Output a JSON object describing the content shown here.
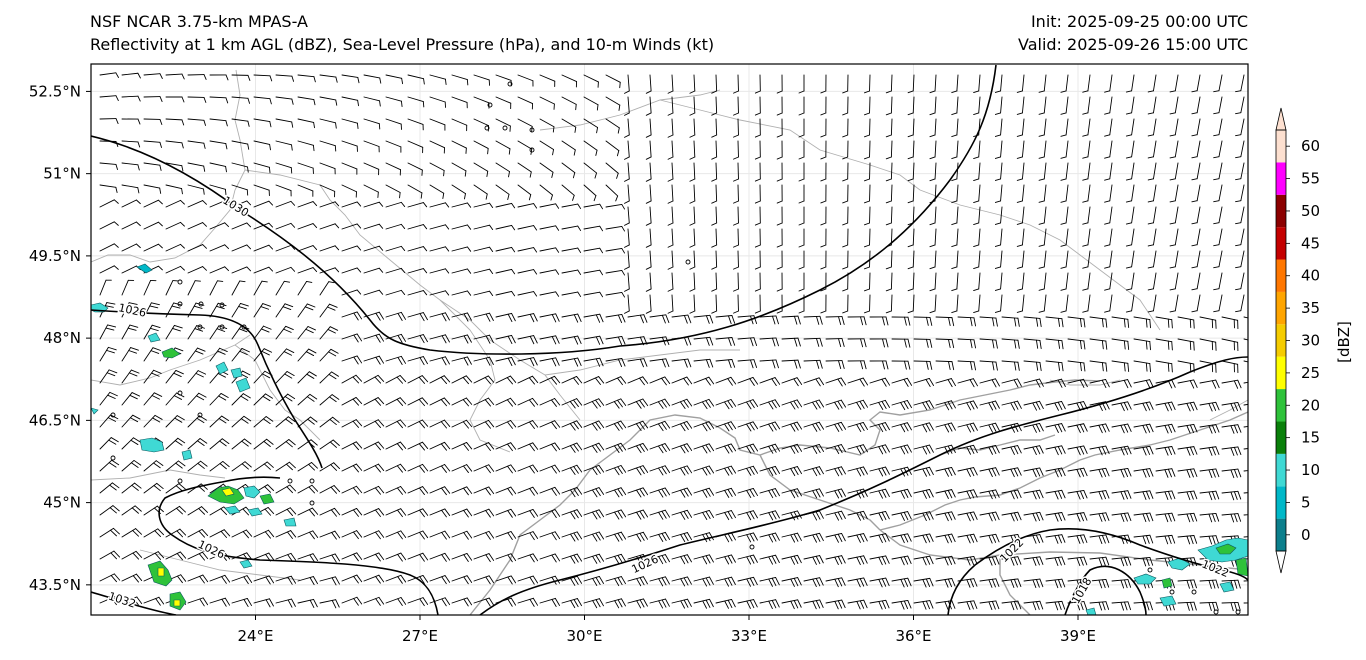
{
  "title": {
    "left_line1": "NSF NCAR 3.75-km MPAS-A",
    "left_line2": "Reflectivity at 1 km AGL (dBZ), Sea-Level Pressure (hPa), and 10-m Winds (kt)",
    "right_line1": "Init: 2025-09-25 00:00 UTC",
    "right_line2": "Valid: 2025-09-26 15:00 UTC"
  },
  "map": {
    "lat_labels": [
      "52.5°N",
      "51°N",
      "49.5°N",
      "48°N",
      "46.5°N",
      "45°N",
      "43.5°N"
    ],
    "lon_labels": [
      "24°E",
      "27°E",
      "30°E",
      "33°E",
      "36°E",
      "39°E"
    ],
    "lat_values": [
      52.5,
      51,
      49.5,
      48,
      46.5,
      45,
      43.5
    ],
    "lon_values": [
      24,
      27,
      30,
      33,
      36,
      39
    ],
    "lon_range": [
      21,
      42.1
    ],
    "lat_range": [
      42.95,
      53.0
    ]
  },
  "isobars": {
    "labels": [
      "1030",
      "1026",
      "1026",
      "1026",
      "1022",
      "1022",
      "1018",
      "1032"
    ]
  },
  "colorbar": {
    "unit_label": "[dBZ]",
    "tick_labels": [
      "0",
      "5",
      "10",
      "15",
      "20",
      "25",
      "30",
      "35",
      "40",
      "45",
      "50",
      "55",
      "60"
    ],
    "bins": [
      {
        "from": 0,
        "to": 5,
        "color": "#0c7f8c"
      },
      {
        "from": 5,
        "to": 10,
        "color": "#00b8c8"
      },
      {
        "from": 10,
        "to": 15,
        "color": "#3fd9d4"
      },
      {
        "from": 15,
        "to": 20,
        "color": "#0a800a"
      },
      {
        "from": 20,
        "to": 25,
        "color": "#2ec23a"
      },
      {
        "from": 25,
        "to": 30,
        "color": "#ffff00"
      },
      {
        "from": 30,
        "to": 35,
        "color": "#f5cc00"
      },
      {
        "from": 35,
        "to": 40,
        "color": "#ffa500"
      },
      {
        "from": 40,
        "to": 45,
        "color": "#ff7700"
      },
      {
        "from": 45,
        "to": 50,
        "color": "#c40000"
      },
      {
        "from": 50,
        "to": 55,
        "color": "#8b0000"
      },
      {
        "from": 55,
        "to": 60,
        "color": "#ff00ff"
      },
      {
        "from": 60,
        "to": 65,
        "color": "#fde0d0"
      }
    ],
    "under_color": "#ffffff",
    "over_color": "#fde0d0"
  }
}
